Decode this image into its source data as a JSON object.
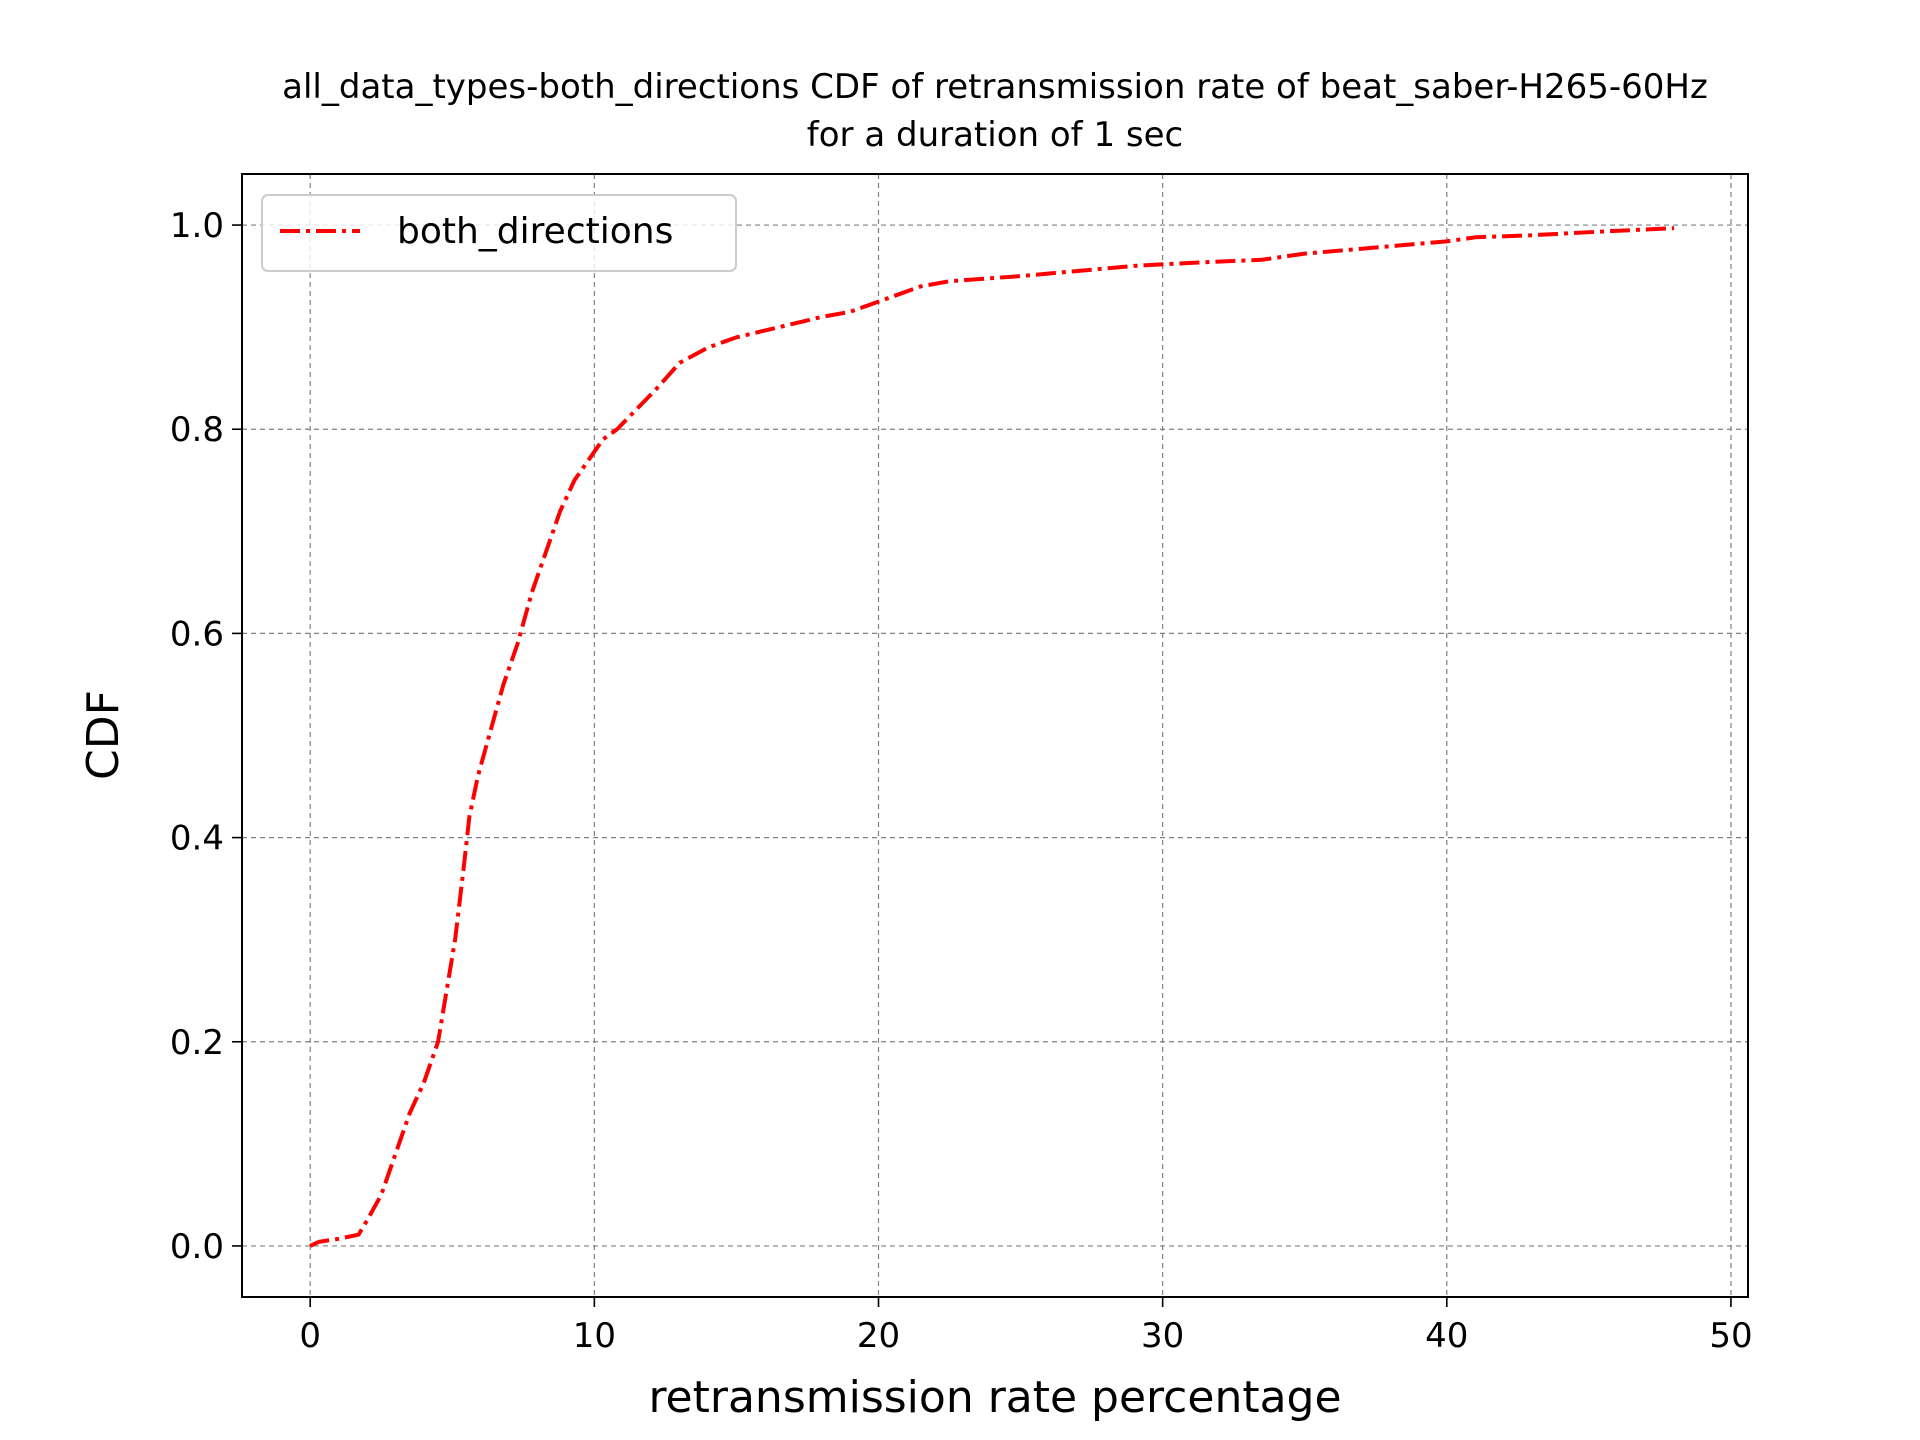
{
  "chart_data": {
    "type": "line",
    "title": "all_data_types-both_directions CDF of retransmission rate of beat_saber-H265-60Hz",
    "subtitle": "for a duration of 1 sec",
    "xlabel": "retransmission rate percentage",
    "ylabel": "CDF",
    "xlim": [
      -2.4,
      50.6
    ],
    "ylim": [
      -0.05,
      1.05
    ],
    "xticks": [
      "0",
      "10",
      "20",
      "30",
      "40",
      "50"
    ],
    "xtick_values": [
      0,
      10,
      20,
      30,
      40,
      50
    ],
    "yticks": [
      "0.0",
      "0.2",
      "0.4",
      "0.6",
      "0.8",
      "1.0"
    ],
    "ytick_values": [
      0.0,
      0.2,
      0.4,
      0.6,
      0.8,
      1.0
    ],
    "grid": true,
    "legend_position": "top-left",
    "series": [
      {
        "name": "both_directions",
        "color": "#ff0000",
        "linestyle": "dash-dot",
        "x": [
          0,
          0.3,
          1.0,
          1.7,
          2.0,
          2.5,
          3.0,
          3.5,
          4.0,
          4.5,
          4.8,
          5.1,
          5.4,
          5.6,
          5.9,
          6.3,
          6.8,
          7.3,
          7.8,
          8.3,
          8.8,
          9.3,
          9.8,
          10.3,
          10.8,
          11.5,
          12.2,
          13.0,
          14.0,
          15.0,
          16.5,
          18.0,
          19.0,
          20.0,
          21.0,
          21.5,
          22.5,
          25.0,
          27.0,
          29.0,
          31.0,
          33.5,
          35.0,
          37.5,
          40.0,
          41.0,
          43.0,
          45.0,
          48.0
        ],
        "y": [
          0.0,
          0.004,
          0.007,
          0.011,
          0.025,
          0.05,
          0.09,
          0.13,
          0.16,
          0.2,
          0.25,
          0.3,
          0.37,
          0.42,
          0.46,
          0.5,
          0.55,
          0.59,
          0.64,
          0.68,
          0.72,
          0.75,
          0.77,
          0.79,
          0.8,
          0.82,
          0.84,
          0.865,
          0.88,
          0.89,
          0.9,
          0.91,
          0.915,
          0.925,
          0.935,
          0.94,
          0.945,
          0.95,
          0.955,
          0.96,
          0.963,
          0.966,
          0.972,
          0.978,
          0.984,
          0.988,
          0.99,
          0.993,
          0.997
        ]
      }
    ]
  }
}
